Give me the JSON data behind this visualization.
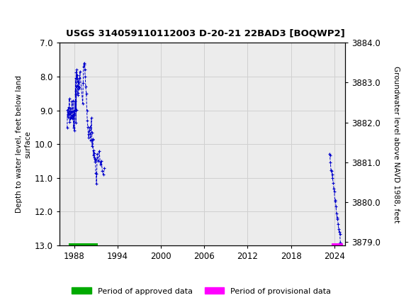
{
  "title": "USGS 314059110112003 D-20-21 22BAD3 [BOQWP2]",
  "ylabel_left": "Depth to water level, feet below land\nsurface",
  "ylabel_right": "Groundwater level above NAVD 1988, feet",
  "ylim_left": [
    7.0,
    13.0
  ],
  "ylim_right": [
    3884.0,
    3878.91
  ],
  "yticks_left": [
    7.0,
    8.0,
    9.0,
    10.0,
    11.0,
    12.0,
    13.0
  ],
  "yticks_right": [
    3884.0,
    3883.0,
    3882.0,
    3881.0,
    3880.0,
    3879.0
  ],
  "xticks": [
    1988,
    1994,
    2000,
    2006,
    2012,
    2018,
    2024
  ],
  "xlim": [
    1986.0,
    2025.5
  ],
  "header_color": "#1b7a5c",
  "grid_color": "#d0d0d0",
  "data_color_blue": "#0000cc",
  "approved_color": "#00aa00",
  "provisional_color": "#ff00ff",
  "approved_bar_x_start": 1987.3,
  "approved_bar_x_end": 1991.3,
  "provisional_bar_x_start": 2023.6,
  "provisional_bar_x_end": 2025.2,
  "bar_depth": 13.0,
  "legend_approved": "Period of approved data",
  "legend_provisional": "Period of provisional data"
}
